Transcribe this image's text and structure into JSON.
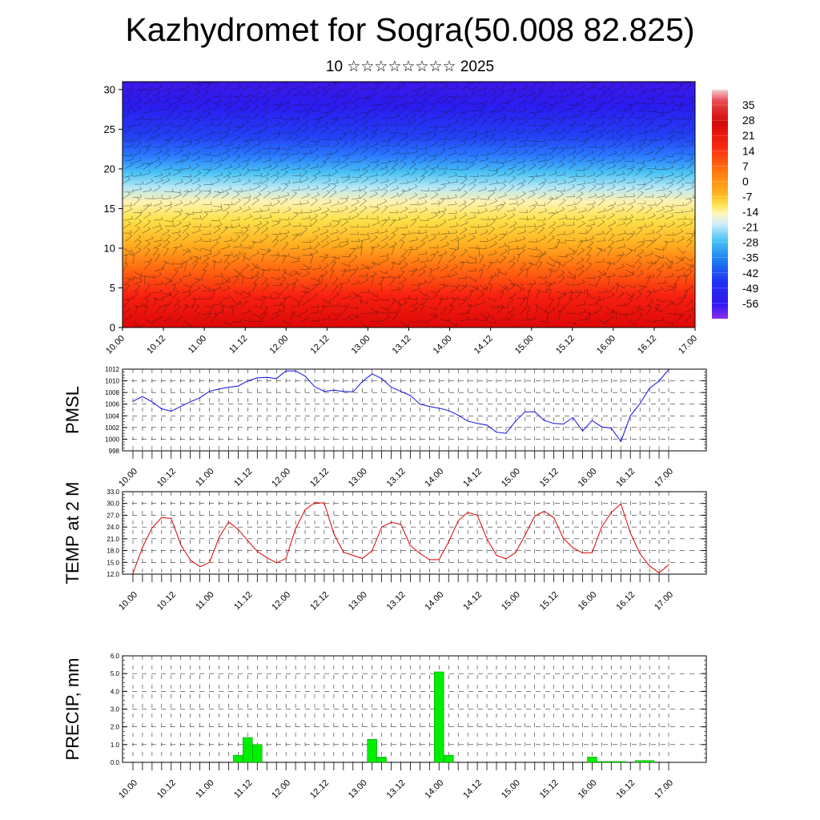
{
  "title": "Kazhydromet for Sogra(50.008 82.825)",
  "subtitle": "10 ☆☆☆☆☆☆☆☆ 2025",
  "time_tick_labels": [
    "10.00",
    "10.12",
    "11.00",
    "11.12",
    "12.00",
    "12.12",
    "13.00",
    "13.12",
    "14.00",
    "14.12",
    "15.00",
    "15.12",
    "16.00",
    "16.12",
    "17.00"
  ],
  "colors": {
    "pmsl_line": "#1010e0",
    "temp_line": "#e00000",
    "precip_bar": "#00ee00",
    "precip_bar_edge": "#008800"
  },
  "chart_data": [
    {
      "type": "heatmap",
      "name": "cross_section",
      "y_ticks": [
        0,
        5,
        10,
        15,
        20,
        25,
        30
      ],
      "ylim": [
        0,
        31
      ],
      "colorbar_labels": [
        "35",
        "28",
        "21",
        "14",
        "7",
        "0",
        "-7",
        "-14",
        "-21",
        "-28",
        "-35",
        "-42",
        "-49",
        "-56"
      ],
      "colorbar_range": [
        -63,
        42
      ]
    },
    {
      "type": "line",
      "name": "pmsl",
      "ylabel": "PMSL",
      "ylim": [
        998,
        1012
      ],
      "y_ticks": [
        998,
        1000,
        1002,
        1004,
        1006,
        1008,
        1010,
        1012
      ],
      "x_hours": [
        0,
        3,
        6,
        9,
        12,
        15,
        18,
        21,
        24,
        27,
        30,
        33,
        36,
        39,
        42,
        45,
        48,
        51,
        54,
        57,
        60,
        63,
        66,
        69,
        72,
        75,
        78,
        81,
        84,
        87,
        90,
        93,
        96,
        99,
        102,
        105,
        108,
        111,
        114,
        117,
        120,
        123,
        126,
        129,
        132,
        135,
        138,
        141,
        144,
        147,
        150,
        153,
        156,
        159,
        162,
        165,
        168
      ],
      "values": [
        1006.5,
        1007.3,
        1006.4,
        1005.2,
        1004.8,
        1005.6,
        1006.4,
        1007.1,
        1008.2,
        1008.6,
        1008.9,
        1009.1,
        1010.0,
        1010.5,
        1010.6,
        1010.4,
        1011.7,
        1011.7,
        1010.8,
        1009.0,
        1008.2,
        1008.4,
        1008.2,
        1008.1,
        1009.9,
        1011.2,
        1010.4,
        1008.9,
        1008.2,
        1007.5,
        1006.0,
        1005.6,
        1005.3,
        1004.9,
        1004.1,
        1003.1,
        1002.7,
        1002.4,
        1001.2,
        1001.0,
        1003.1,
        1004.7,
        1004.7,
        1003.2,
        1002.7,
        1002.6,
        1003.7,
        1001.4,
        1003.2,
        1002.1,
        1001.9,
        999.6,
        1004.0,
        1006.1,
        1008.7,
        1010.0,
        1011.9
      ]
    },
    {
      "type": "line",
      "name": "temp",
      "ylabel": "TEMP at 2 M",
      "ylim": [
        12.0,
        33.0
      ],
      "y_ticks": [
        "12.0",
        "15.0",
        "18.0",
        "21.0",
        "24.0",
        "27.0",
        "30.0",
        "33.0"
      ],
      "x_hours": [
        0,
        3,
        6,
        9,
        12,
        15,
        18,
        21,
        24,
        27,
        30,
        33,
        36,
        39,
        42,
        45,
        48,
        51,
        54,
        57,
        60,
        63,
        66,
        69,
        72,
        75,
        78,
        81,
        84,
        87,
        90,
        93,
        96,
        99,
        102,
        105,
        108,
        111,
        114,
        117,
        120,
        123,
        126,
        129,
        132,
        135,
        138,
        141,
        144,
        147,
        150,
        153,
        156,
        159,
        162,
        165,
        168
      ],
      "values": [
        12.2,
        18.8,
        23.8,
        26.4,
        26.2,
        19.5,
        15.6,
        13.9,
        15.0,
        21.3,
        25.3,
        23.4,
        20.5,
        17.8,
        16.2,
        14.9,
        16.0,
        23.6,
        28.4,
        30.2,
        30.1,
        22.3,
        17.6,
        16.8,
        16.0,
        18.0,
        24.0,
        25.2,
        24.7,
        19.3,
        17.3,
        15.7,
        15.7,
        20.2,
        25.6,
        27.7,
        27.0,
        21.0,
        16.8,
        15.9,
        17.5,
        22.0,
        26.8,
        28.0,
        26.4,
        21.1,
        18.7,
        17.4,
        17.5,
        24.0,
        27.7,
        29.9,
        22.5,
        17.2,
        14.1,
        12.3,
        14.4
      ]
    },
    {
      "type": "bar",
      "name": "precip",
      "ylabel": "PRECIP, mm",
      "ylim": [
        0.0,
        6.0
      ],
      "y_ticks": [
        "0.0",
        "1.0",
        "2.0",
        "3.0",
        "4.0",
        "5.0",
        "6.0"
      ],
      "bar_width_hours": 3,
      "x_hours": [
        33,
        36,
        39,
        75,
        78,
        96,
        99,
        144,
        147,
        150,
        153,
        159,
        162
      ],
      "values": [
        0.4,
        1.4,
        1.0,
        1.3,
        0.3,
        5.1,
        0.4,
        0.3,
        0.05,
        0.05,
        0.05,
        0.1,
        0.1
      ]
    }
  ]
}
